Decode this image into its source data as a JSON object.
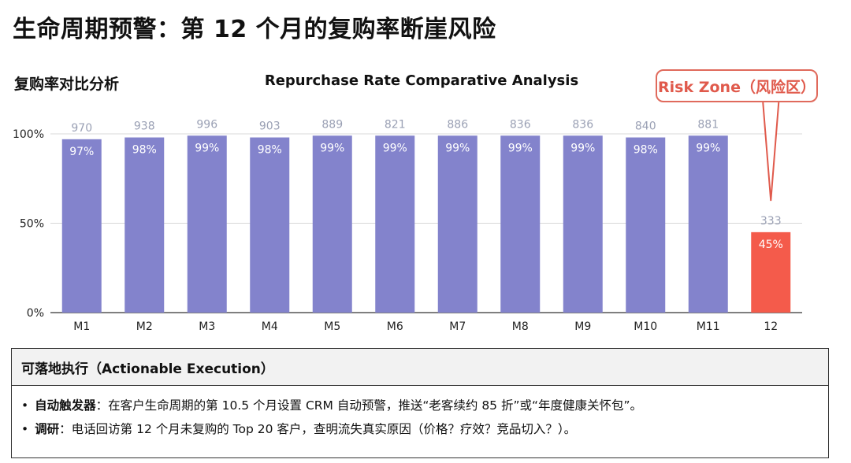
{
  "page": {
    "title": "生命周期预警：第 12 个月的复购率断崖风险"
  },
  "chart": {
    "label": "复购率对比分析",
    "risk_label": "Risk Zone（风险区）"
  },
  "chart_data": {
    "type": "bar",
    "title": "Repurchase Rate Comparative Analysis",
    "categories": [
      "M1",
      "M2",
      "M3",
      "M4",
      "M5",
      "M6",
      "M7",
      "M8",
      "M9",
      "M10",
      "M11",
      "12"
    ],
    "values": [
      97,
      98,
      99,
      98,
      99,
      99,
      99,
      99,
      99,
      98,
      99,
      45
    ],
    "value_labels": [
      "97%",
      "98%",
      "99%",
      "98%",
      "99%",
      "99%",
      "99%",
      "99%",
      "99%",
      "98%",
      "99%",
      "45%"
    ],
    "counts": [
      "970",
      "938",
      "996",
      "903",
      "889",
      "821",
      "886",
      "836",
      "836",
      "840",
      "881",
      "333"
    ],
    "ylim": [
      0,
      100
    ],
    "yticks": [
      "0%",
      "50%",
      "100%"
    ],
    "grid": true,
    "colors": {
      "normal": "#8383cc",
      "risk": "#f45b4b",
      "risk_text": "#e05a4c",
      "count_text": "#9aa0b4"
    },
    "xlabel": "",
    "ylabel": ""
  },
  "actions": {
    "header": "可落地执行（Actionable Execution）",
    "items": [
      {
        "label": "自动触发器",
        "text": "：在客户生命周期的第 10.5 个月设置 CRM 自动预警，推送“老客续约 85 折”或“年度健康关怀包”。"
      },
      {
        "label": "调研",
        "text": "：电话回访第 12 个月未复购的 Top 20 客户，查明流失真实原因（价格？疗效？竞品切入？）。"
      }
    ]
  }
}
